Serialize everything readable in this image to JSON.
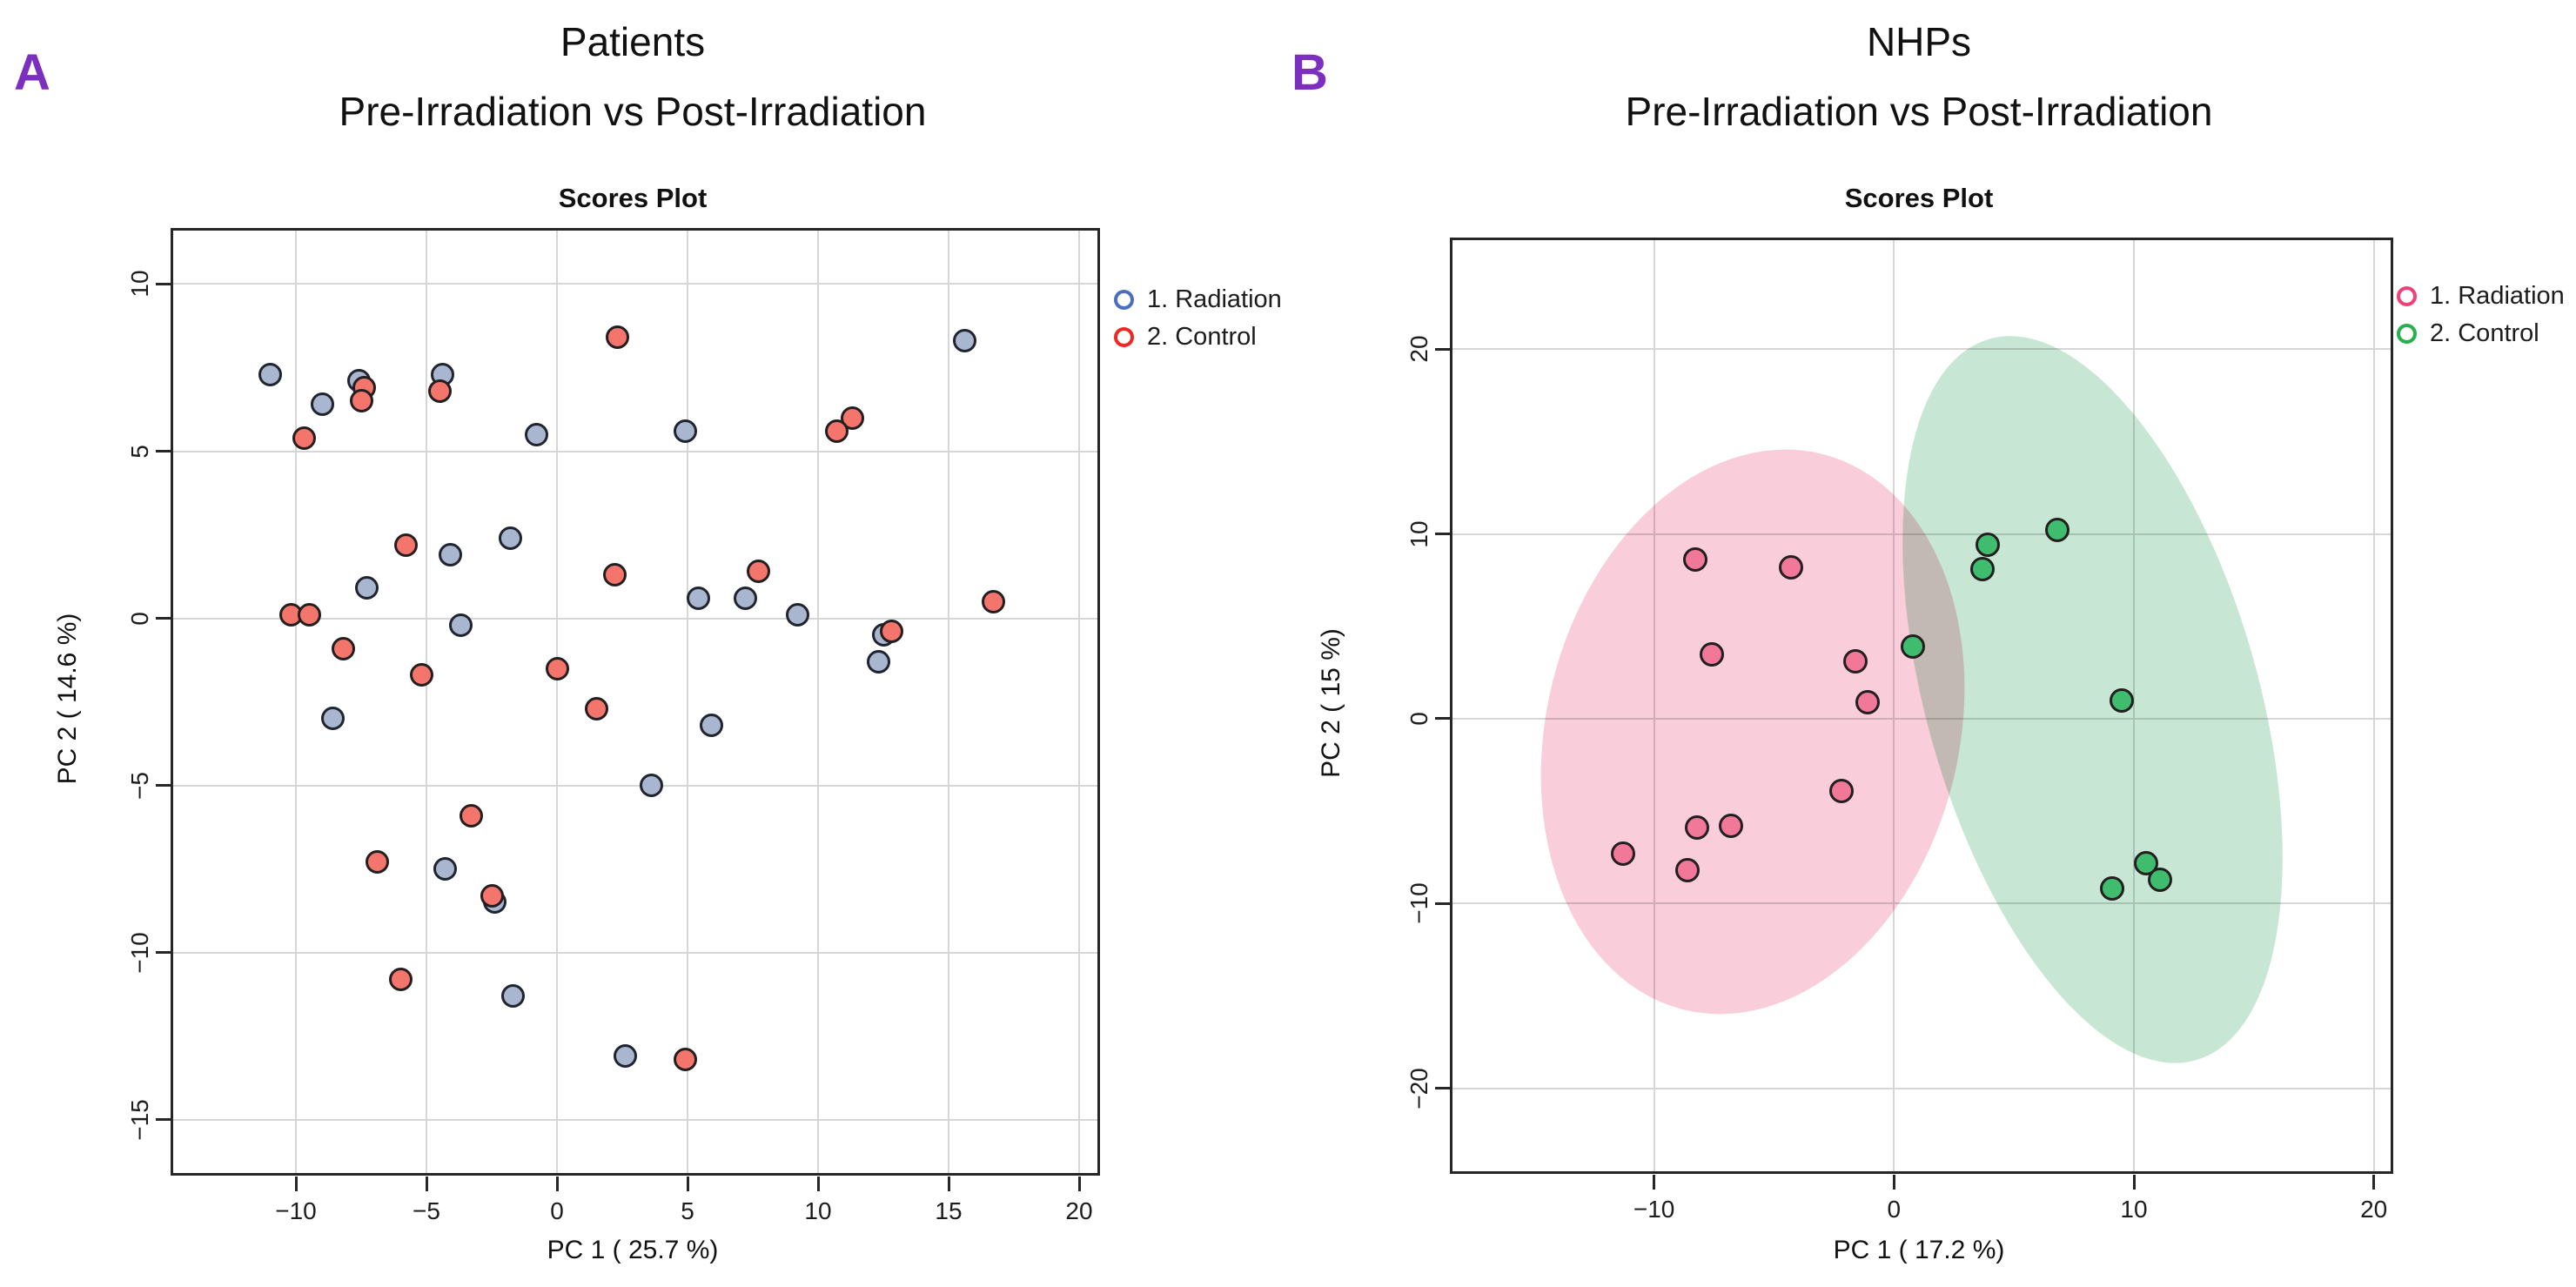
{
  "page": {
    "background": "#ffffff",
    "panel_label_color": "#7c2fbe"
  },
  "chart_data": [
    {
      "id": "A",
      "type": "scatter",
      "panel_label": "A",
      "title_lines": [
        "Patients",
        "Pre-Irradiation vs Post-Irradiation"
      ],
      "subtitle": "Scores Plot",
      "xlabel": "PC 1 ( 25.7 %)",
      "ylabel": "PC 2 ( 14.6 %)",
      "xlim": [
        -14.7,
        20.7
      ],
      "ylim": [
        -16.6,
        11.6
      ],
      "xticks": [
        -10,
        -5,
        0,
        5,
        10,
        15,
        20
      ],
      "yticks": [
        -15,
        -10,
        -5,
        0,
        5,
        10
      ],
      "grid": true,
      "legend": {
        "position": "right-top",
        "items": [
          {
            "label": "1. Radiation",
            "color": "#4a6fc0"
          },
          {
            "label": "2. Control",
            "color": "#ee2824"
          }
        ]
      },
      "series": [
        {
          "name": "1. Radiation",
          "marker_fill": "#a9b6cf",
          "marker_edge": "#20242e",
          "points": [
            [
              -11.0,
              7.3
            ],
            [
              -9.0,
              6.4
            ],
            [
              -7.6,
              7.1
            ],
            [
              -4.4,
              7.3
            ],
            [
              -0.8,
              5.5
            ],
            [
              4.9,
              5.6
            ],
            [
              15.6,
              8.3
            ],
            [
              -7.3,
              0.9
            ],
            [
              -4.1,
              1.9
            ],
            [
              -1.8,
              2.4
            ],
            [
              5.4,
              0.6
            ],
            [
              7.2,
              0.6
            ],
            [
              9.2,
              0.1
            ],
            [
              12.5,
              -0.5
            ],
            [
              12.3,
              -1.3
            ],
            [
              -3.7,
              -0.2
            ],
            [
              -8.6,
              -3.0
            ],
            [
              5.9,
              -3.2
            ],
            [
              3.6,
              -5.0
            ],
            [
              -4.3,
              -7.5
            ],
            [
              -2.4,
              -8.5
            ],
            [
              -1.7,
              -11.3
            ],
            [
              2.6,
              -13.1
            ]
          ]
        },
        {
          "name": "2. Control",
          "marker_fill": "#f3756c",
          "marker_edge": "#231f20",
          "points": [
            [
              -7.4,
              6.9
            ],
            [
              -7.5,
              6.5
            ],
            [
              -4.5,
              6.8
            ],
            [
              2.3,
              8.4
            ],
            [
              -9.7,
              5.4
            ],
            [
              11.3,
              6.0
            ],
            [
              10.7,
              5.6
            ],
            [
              -5.8,
              2.2
            ],
            [
              2.2,
              1.3
            ],
            [
              7.7,
              1.4
            ],
            [
              16.7,
              0.5
            ],
            [
              -10.2,
              0.1
            ],
            [
              -9.5,
              0.1
            ],
            [
              -8.2,
              -0.9
            ],
            [
              -5.2,
              -1.7
            ],
            [
              0.0,
              -1.5
            ],
            [
              1.5,
              -2.7
            ],
            [
              12.8,
              -0.4
            ],
            [
              -3.3,
              -5.9
            ],
            [
              -6.9,
              -7.3
            ],
            [
              -2.5,
              -8.3
            ],
            [
              -6.0,
              -10.8
            ],
            [
              4.9,
              -13.2
            ]
          ]
        }
      ],
      "ellipses": []
    },
    {
      "id": "B",
      "type": "scatter",
      "panel_label": "B",
      "title_lines": [
        "NHPs",
        "Pre-Irradiation vs Post-Irradiation"
      ],
      "subtitle": "Scores Plot",
      "xlabel": "PC 1 ( 17.2 %)",
      "ylabel": "PC 2 ( 15 %)",
      "xlim": [
        -18.4,
        20.7
      ],
      "ylim": [
        -24.5,
        25.9
      ],
      "xticks": [
        -10,
        0,
        10,
        20
      ],
      "yticks": [
        -20,
        -10,
        0,
        10,
        20
      ],
      "grid": true,
      "legend": {
        "position": "right-top",
        "items": [
          {
            "label": "1. Radiation",
            "color": "#f23f76"
          },
          {
            "label": "2. Control",
            "color": "#27b14c"
          }
        ]
      },
      "series": [
        {
          "name": "1. Radiation",
          "marker_fill": "#f2789a",
          "marker_edge": "#231f20",
          "points": [
            [
              -8.3,
              8.6
            ],
            [
              -4.3,
              8.2
            ],
            [
              -7.6,
              3.5
            ],
            [
              -1.6,
              3.1
            ],
            [
              -1.1,
              0.9
            ],
            [
              -2.2,
              -3.9
            ],
            [
              -8.2,
              -5.9
            ],
            [
              -6.8,
              -5.8
            ],
            [
              -11.3,
              -7.3
            ],
            [
              -8.6,
              -8.2
            ]
          ]
        },
        {
          "name": "2. Control",
          "marker_fill": "#3fbc6e",
          "marker_edge": "#231f20",
          "points": [
            [
              6.8,
              10.2
            ],
            [
              3.9,
              9.4
            ],
            [
              3.7,
              8.1
            ],
            [
              0.8,
              3.9
            ],
            [
              9.5,
              1.0
            ],
            [
              9.1,
              -9.2
            ],
            [
              10.5,
              -7.8
            ],
            [
              11.1,
              -8.7
            ]
          ]
        }
      ],
      "ellipses": [
        {
          "series": "1. Radiation",
          "fill": "#f9cdd9",
          "cx": -5.9,
          "cy": -0.7,
          "rx_units": 8.6,
          "ry_units": 15.5,
          "rotate_deg": 14
        },
        {
          "series": "2. Control",
          "fill": "#c7e7d4",
          "cx": 8.25,
          "cy": 1.05,
          "rx_units": 6.9,
          "ry_units": 20.3,
          "rotate_deg": -16
        }
      ]
    }
  ]
}
